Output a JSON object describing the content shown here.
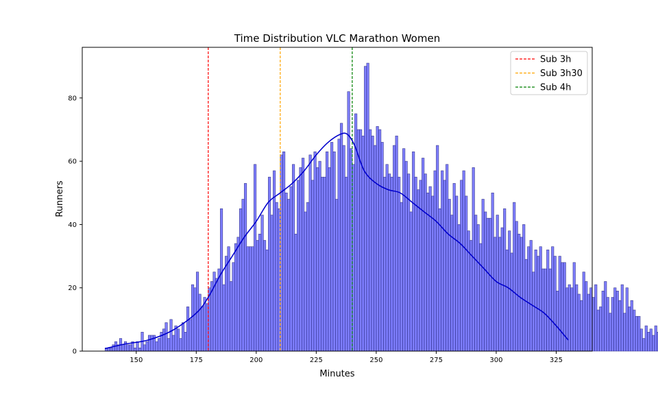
{
  "chart_data": {
    "type": "histogram",
    "title": "Time Distribution VLC Marathon Women",
    "xlabel": "Minutes",
    "ylabel": "Runners",
    "xlim": [
      127.5,
      340
    ],
    "ylim": [
      0,
      96
    ],
    "xticks": [
      150,
      175,
      200,
      225,
      250,
      275,
      300,
      325
    ],
    "yticks": [
      0,
      20,
      40,
      60,
      80
    ],
    "bin_start": 137,
    "bin_width": 1,
    "values": [
      1,
      1,
      1,
      2,
      3,
      2,
      4,
      2,
      3,
      2,
      2,
      3,
      1,
      3,
      1,
      6,
      2,
      3,
      5,
      5,
      5,
      3,
      4,
      6,
      7,
      9,
      4,
      10,
      5,
      8,
      7,
      4,
      9,
      6,
      14,
      10,
      21,
      20,
      25,
      18,
      14,
      17,
      15,
      20,
      22,
      25,
      23,
      26,
      45,
      21,
      30,
      33,
      22,
      28,
      34,
      36,
      45,
      48,
      53,
      33,
      33,
      33,
      59,
      35,
      37,
      43,
      35,
      32,
      55,
      43,
      57,
      47,
      45,
      62,
      63,
      50,
      48,
      52,
      59,
      37,
      54,
      58,
      61,
      44,
      47,
      62,
      54,
      63,
      58,
      60,
      55,
      55,
      63,
      58,
      66,
      63,
      48,
      67,
      72,
      65,
      55,
      82,
      64,
      59,
      75,
      70,
      70,
      68,
      90,
      91,
      70,
      68,
      65,
      71,
      70,
      66,
      55,
      59,
      56,
      55,
      65,
      68,
      55,
      47,
      64,
      60,
      56,
      44,
      63,
      55,
      51,
      54,
      61,
      56,
      50,
      52,
      49,
      57,
      65,
      45,
      57,
      54,
      59,
      48,
      43,
      53,
      49,
      40,
      54,
      57,
      49,
      38,
      35,
      58,
      43,
      40,
      34,
      48,
      44,
      42,
      42,
      50,
      36,
      43,
      36,
      39,
      45,
      32,
      38,
      31,
      47,
      41,
      37,
      36,
      40,
      29,
      33,
      35,
      25,
      32,
      30,
      33,
      26,
      26,
      32,
      26,
      33,
      30,
      19,
      30,
      28,
      28,
      20,
      21,
      20,
      28,
      21,
      18,
      16,
      25,
      22,
      18,
      20,
      17,
      21,
      13,
      14,
      19,
      22,
      17,
      12,
      17,
      20,
      19,
      16,
      21,
      12,
      20,
      14,
      16,
      13,
      11,
      11,
      7,
      4,
      8,
      6,
      7,
      5,
      8,
      6
    ],
    "kde": [
      [
        137,
        0.8
      ],
      [
        145,
        2.2
      ],
      [
        155,
        3.5
      ],
      [
        165,
        6.5
      ],
      [
        175,
        12
      ],
      [
        180,
        17
      ],
      [
        185,
        24
      ],
      [
        190,
        30
      ],
      [
        195,
        36
      ],
      [
        200,
        41
      ],
      [
        205,
        47
      ],
      [
        210,
        50
      ],
      [
        215,
        53
      ],
      [
        220,
        57
      ],
      [
        225,
        62
      ],
      [
        230,
        66
      ],
      [
        235,
        68.5
      ],
      [
        238,
        68.5
      ],
      [
        241,
        65
      ],
      [
        245,
        57
      ],
      [
        250,
        53
      ],
      [
        255,
        51
      ],
      [
        260,
        50
      ],
      [
        265,
        47
      ],
      [
        270,
        44
      ],
      [
        275,
        41
      ],
      [
        280,
        37
      ],
      [
        285,
        34
      ],
      [
        290,
        30
      ],
      [
        295,
        26
      ],
      [
        300,
        22
      ],
      [
        305,
        20
      ],
      [
        310,
        17
      ],
      [
        315,
        14.5
      ],
      [
        320,
        12
      ],
      [
        325,
        8
      ],
      [
        330,
        3.5
      ]
    ],
    "vlines": [
      {
        "label": "Sub 3h",
        "x": 180,
        "color": "#ff0000"
      },
      {
        "label": "Sub 3h30",
        "x": 210,
        "color": "#ffa500"
      },
      {
        "label": "Sub 4h",
        "x": 240,
        "color": "#008000"
      }
    ],
    "bar_color": "#0000ff",
    "kde_color": "#0000cd",
    "legend_position": "upper right"
  }
}
